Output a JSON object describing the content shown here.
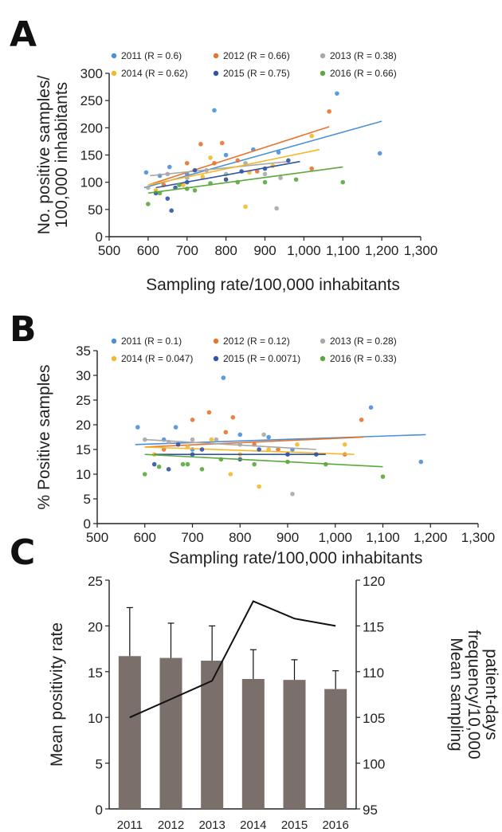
{
  "panels": {
    "a": {
      "letter": "A"
    },
    "b": {
      "letter": "B"
    },
    "c": {
      "letter": "C"
    }
  },
  "colors": {
    "2011": "#4a90d9",
    "2012": "#e8742c",
    "2013": "#a8a8a8",
    "2014": "#f4b82a",
    "2015": "#2f55a4",
    "2016": "#5ba83e",
    "bar": "#7a6f6a",
    "line": "#111111"
  },
  "chart_data": [
    {
      "type": "scatter",
      "panel": "A",
      "xlabel": "Sampling rate/100,000 inhabitants",
      "ylabel": "No. positive samples/ 100,000 inhabitants",
      "ylabel_lines": [
        "No. positive samples/",
        "100,000 inhabitants"
      ],
      "xlim": [
        500,
        1300
      ],
      "ylim": [
        0,
        300
      ],
      "xticks": [
        500,
        600,
        700,
        800,
        900,
        1000,
        1100,
        1200,
        1300
      ],
      "xtick_labels": [
        "500",
        "600",
        "700",
        "800",
        "900",
        "1,000",
        "1,100",
        "1,200",
        "1,300"
      ],
      "yticks": [
        0,
        50,
        100,
        150,
        200,
        250,
        300
      ],
      "ytick_labels": [
        "0",
        "50",
        "100",
        "150",
        "200",
        "250",
        "300"
      ],
      "legend": [
        "2011 (R = 0.6)",
        "2012 (R = 0.66)",
        "2013 (R = 0.38)",
        "2014 (R = 0.62)",
        "2015 (R = 0.75)",
        "2016 (R = 0.66)"
      ],
      "series": [
        {
          "name": "2011 (R = 0.6)",
          "year": "2011",
          "points": [
            [
              595,
              118
            ],
            [
              630,
              112
            ],
            [
              655,
              128
            ],
            [
              700,
              115
            ],
            [
              770,
              232
            ],
            [
              800,
              150
            ],
            [
              870,
              160
            ],
            [
              935,
              155
            ],
            [
              1085,
              263
            ],
            [
              1195,
              153
            ]
          ],
          "trend": [
            [
              590,
              90
            ],
            [
              1200,
              212
            ]
          ]
        },
        {
          "name": "2012 (R = 0.66)",
          "year": "2012",
          "points": [
            [
              640,
              95
            ],
            [
              700,
              135
            ],
            [
              735,
              170
            ],
            [
              770,
              135
            ],
            [
              790,
              172
            ],
            [
              830,
              140
            ],
            [
              880,
              120
            ],
            [
              1020,
              125
            ],
            [
              1065,
              230
            ]
          ],
          "trend": [
            [
              600,
              95
            ],
            [
              1065,
              202
            ]
          ]
        },
        {
          "name": "2013 (R = 0.38)",
          "year": "2013",
          "points": [
            [
              600,
              90
            ],
            [
              650,
              115
            ],
            [
              700,
              108
            ],
            [
              750,
              122
            ],
            [
              800,
              115
            ],
            [
              850,
              135
            ],
            [
              900,
              115
            ],
            [
              940,
              108
            ],
            [
              930,
              52
            ]
          ],
          "trend": [
            [
              605,
              112
            ],
            [
              960,
              138
            ]
          ]
        },
        {
          "name": "2014 (R = 0.62)",
          "year": "2014",
          "points": [
            [
              620,
              85
            ],
            [
              690,
              95
            ],
            [
              740,
              110
            ],
            [
              800,
              105
            ],
            [
              860,
              118
            ],
            [
              920,
              130
            ],
            [
              1020,
              185
            ],
            [
              850,
              55
            ],
            [
              760,
              145
            ]
          ],
          "trend": [
            [
              600,
              95
            ],
            [
              1040,
              160
            ]
          ]
        },
        {
          "name": "2015 (R = 0.75)",
          "year": "2015",
          "points": [
            [
              620,
              80
            ],
            [
              650,
              70
            ],
            [
              670,
              90
            ],
            [
              700,
              100
            ],
            [
              720,
              122
            ],
            [
              800,
              105
            ],
            [
              840,
              120
            ],
            [
              900,
              125
            ],
            [
              960,
              140
            ],
            [
              660,
              48
            ]
          ],
          "trend": [
            [
              620,
              90
            ],
            [
              990,
              138
            ]
          ]
        },
        {
          "name": "2016 (R = 0.66)",
          "year": "2016",
          "points": [
            [
              600,
              60
            ],
            [
              630,
              80
            ],
            [
              680,
              95
            ],
            [
              720,
              85
            ],
            [
              760,
              98
            ],
            [
              830,
              100
            ],
            [
              900,
              100
            ],
            [
              980,
              105
            ],
            [
              1100,
              100
            ],
            [
              700,
              88
            ]
          ],
          "trend": [
            [
              600,
              80
            ],
            [
              1100,
              128
            ]
          ]
        }
      ]
    },
    {
      "type": "scatter",
      "panel": "B",
      "xlabel": "Sampling rate/100,000 inhabitants",
      "ylabel": "% Positive samples",
      "xlim": [
        500,
        1300
      ],
      "ylim": [
        0,
        35
      ],
      "xticks": [
        500,
        600,
        700,
        800,
        900,
        1000,
        1100,
        1200,
        1300
      ],
      "xtick_labels": [
        "500",
        "600",
        "700",
        "800",
        "900",
        "1,000",
        "1,100",
        "1,200",
        "1,300"
      ],
      "yticks": [
        0,
        5,
        10,
        15,
        20,
        25,
        30,
        35
      ],
      "ytick_labels": [
        "0",
        "5",
        "10",
        "15",
        "20",
        "25",
        "30",
        "35"
      ],
      "legend": [
        "2011 (R = 0.1)",
        "2012 (R = 0.12)",
        "2013 (R = 0.28)",
        "2014 (R = 0.047)",
        "2015 (R = 0.0071)",
        "2016 (R = 0.33)"
      ],
      "series": [
        {
          "name": "2011 (R = 0.1)",
          "year": "2011",
          "points": [
            [
              585,
              19.5
            ],
            [
              640,
              17
            ],
            [
              665,
              19.5
            ],
            [
              700,
              15
            ],
            [
              765,
              29.5
            ],
            [
              800,
              18
            ],
            [
              860,
              17.5
            ],
            [
              1075,
              23.5
            ],
            [
              1180,
              12.5
            ],
            [
              910,
              15
            ]
          ],
          "trend": [
            [
              580,
              16
            ],
            [
              1190,
              18
            ]
          ]
        },
        {
          "name": "2012 (R = 0.12)",
          "year": "2012",
          "points": [
            [
              640,
              15
            ],
            [
              700,
              21
            ],
            [
              735,
              22.5
            ],
            [
              770,
              18.5
            ],
            [
              785,
              21.5
            ],
            [
              830,
              16
            ],
            [
              880,
              15
            ],
            [
              1055,
              21
            ],
            [
              1020,
              14
            ]
          ],
          "trend": [
            [
              600,
              15.5
            ],
            [
              1060,
              17.5
            ]
          ]
        },
        {
          "name": "2013 (R = 0.28)",
          "year": "2013",
          "points": [
            [
              600,
              17
            ],
            [
              650,
              16.5
            ],
            [
              700,
              17
            ],
            [
              750,
              17
            ],
            [
              800,
              16
            ],
            [
              850,
              18
            ],
            [
              900,
              14
            ],
            [
              910,
              6
            ]
          ],
          "trend": [
            [
              600,
              17
            ],
            [
              960,
              15
            ]
          ]
        },
        {
          "name": "2014 (R = 0.047)",
          "year": "2014",
          "points": [
            [
              620,
              14
            ],
            [
              690,
              15.5
            ],
            [
              740,
              17
            ],
            [
              800,
              14
            ],
            [
              860,
              15
            ],
            [
              920,
              16
            ],
            [
              1020,
              16
            ],
            [
              840,
              7.5
            ],
            [
              780,
              10
            ]
          ],
          "trend": [
            [
              600,
              15.5
            ],
            [
              1040,
              14
            ]
          ]
        },
        {
          "name": "2015 (R = 0.0071)",
          "year": "2015",
          "points": [
            [
              620,
              12
            ],
            [
              650,
              11
            ],
            [
              670,
              16
            ],
            [
              700,
              14
            ],
            [
              720,
              15
            ],
            [
              800,
              13
            ],
            [
              840,
              15
            ],
            [
              900,
              14
            ],
            [
              960,
              14
            ]
          ],
          "trend": [
            [
              620,
              14
            ],
            [
              980,
              14
            ]
          ]
        },
        {
          "name": "2016 (R = 0.33)",
          "year": "2016",
          "points": [
            [
              600,
              10
            ],
            [
              630,
              11.5
            ],
            [
              680,
              12
            ],
            [
              720,
              11
            ],
            [
              760,
              13
            ],
            [
              830,
              12
            ],
            [
              900,
              12.5
            ],
            [
              980,
              12
            ],
            [
              1100,
              9.5
            ],
            [
              690,
              12
            ]
          ],
          "trend": [
            [
              600,
              14
            ],
            [
              1100,
              11.5
            ]
          ]
        }
      ]
    },
    {
      "type": "bar",
      "panel": "C",
      "categories": [
        "2011",
        "2012",
        "2013",
        "2014",
        "2015",
        "2016"
      ],
      "ylabel": "Mean positivity rate",
      "ylim": [
        0,
        25
      ],
      "yticks": [
        0,
        5,
        10,
        15,
        20,
        25
      ],
      "bars": [
        16.7,
        16.5,
        16.2,
        14.2,
        14.1,
        13.1
      ],
      "errors": [
        5.3,
        3.8,
        3.8,
        3.2,
        2.2,
        2.0
      ],
      "y2label": "Mean sampling frequency/10,000 patient-days",
      "y2label_lines": [
        "Mean sampling",
        "frequency/10,000",
        "patient-days"
      ],
      "y2lim": [
        95,
        120
      ],
      "y2ticks": [
        95,
        100,
        105,
        110,
        115,
        120
      ],
      "line": [
        105,
        107,
        109,
        117.7,
        115.8,
        115
      ]
    }
  ]
}
